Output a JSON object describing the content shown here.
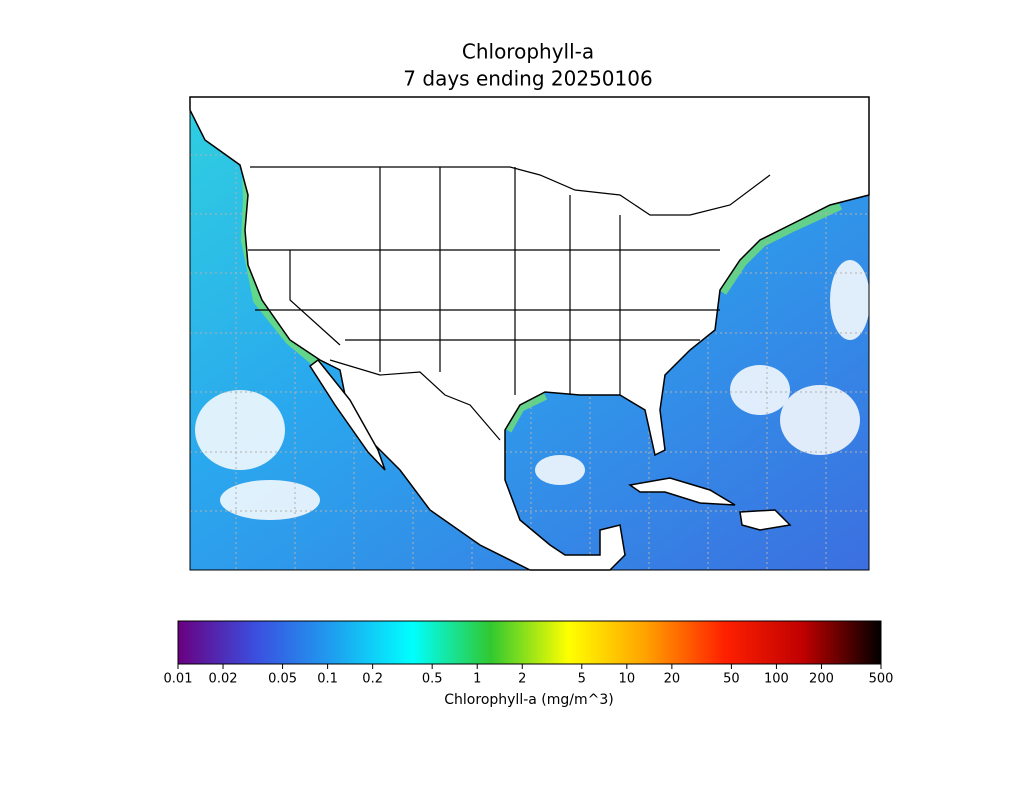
{
  "chart_data": {
    "type": "colorbar",
    "title": "Chlorophyll-a",
    "subtitle": "7 days ending 20250106",
    "colorbar_label": "Chlorophyll-a (mg/m^3)",
    "scale": "log",
    "xlim": [
      0.01,
      500
    ],
    "xticks": [
      0.01,
      0.02,
      0.05,
      0.1,
      0.2,
      0.5,
      1,
      2,
      5,
      10,
      20,
      50,
      100,
      200,
      500
    ],
    "colors": [
      "#6a0080",
      "#3a4fe0",
      "#1ea0f0",
      "#00ffff",
      "#30c830",
      "#ffff00",
      "#ffa000",
      "#ff2000",
      "#c00000",
      "#000000"
    ]
  }
}
